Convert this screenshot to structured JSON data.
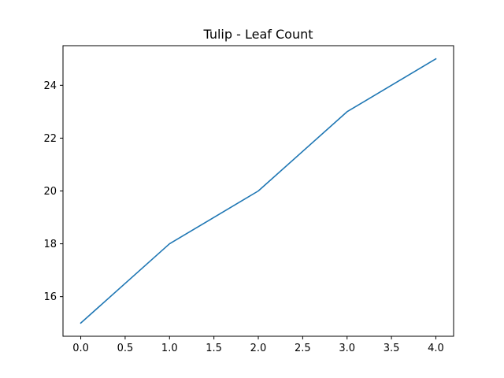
{
  "chart_data": {
    "type": "line",
    "title": "Tulip - Leaf Count",
    "xlabel": "",
    "ylabel": "",
    "x": [
      0,
      1,
      2,
      3,
      4
    ],
    "series": [
      {
        "values": [
          15,
          18,
          20,
          23,
          25
        ],
        "color": "#1f77b4"
      }
    ],
    "xlim": [
      -0.2,
      4.2
    ],
    "ylim": [
      14.5,
      25.5
    ],
    "xticks": [
      0,
      0.5,
      1,
      1.5,
      2,
      2.5,
      3,
      3.5,
      4
    ],
    "xtick_labels": [
      "0.0",
      "0.5",
      "1.0",
      "1.5",
      "2.0",
      "2.5",
      "3.0",
      "3.5",
      "4.0"
    ],
    "yticks": [
      16,
      18,
      20,
      22,
      24
    ],
    "ytick_labels": [
      "16",
      "18",
      "20",
      "22",
      "24"
    ],
    "grid": false,
    "legend": "none"
  }
}
